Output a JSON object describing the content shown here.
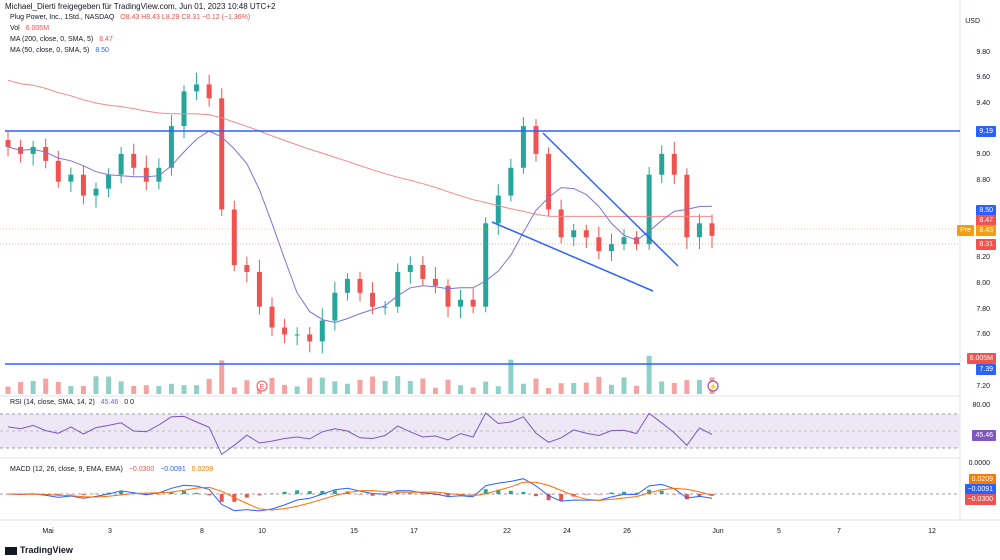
{
  "header": {
    "attribution": "Michael_Dierti freigegeben für TradingView.com, Jun 01, 2023 10:48 UTC+2"
  },
  "legend": {
    "symbol": "Plug Power, Inc., 1Std., NASDAQ",
    "ohlc": "O8.43 H8.43 L8.29 C8.31 −0.12 (−1.36%)",
    "vol_label": "Vol",
    "vol_value": "6.005M",
    "ma200_label": "MA (200, close, 0, SMA, 5)",
    "ma200_value": "8.47",
    "ma50_label": "MA (50, close, 0, SMA, 5)",
    "ma50_value": "8.50",
    "rsi_label": "RSI (14, close, SMA, 14, 2)",
    "rsi_value": "45.46",
    "rsi_extra": "0 0",
    "macd_label": "MACD (12, 26, close, 9, EMA, EMA)",
    "macd_v1": "−0.0300",
    "macd_v2": "−0.0091",
    "macd_v3": "0.0209"
  },
  "axis": {
    "currency": "USD",
    "y_ticks": [
      "9.80",
      "9.60",
      "9.40",
      "9.00",
      "8.80",
      "8.20",
      "8.00",
      "7.80",
      "7.60",
      "7.20"
    ],
    "rsi_ticks": [
      "80.00",
      "0.0000"
    ],
    "x_ticks": [
      "Mai",
      "3",
      "8",
      "10",
      "15",
      "17",
      "22",
      "24",
      "26",
      "Jun",
      "5",
      "7",
      "12"
    ]
  },
  "price_labels": [
    {
      "text": "9.19",
      "color": "#2962ff"
    },
    {
      "text": "8.50",
      "color": "#2962ff"
    },
    {
      "text": "8.47",
      "color": "#ef5350"
    },
    {
      "text": "Pre",
      "color": "#f59d0f"
    },
    {
      "text": "8.43",
      "color": "#f59d0f"
    },
    {
      "text": "8.31",
      "color": "#ef5350"
    },
    {
      "text": "6.005M",
      "color": "#ef5350"
    },
    {
      "text": "7.39",
      "color": "#2962ff"
    },
    {
      "text": "45.46",
      "color": "#7e57c2"
    },
    {
      "text": "0.0209",
      "color": "#f57c00"
    },
    {
      "text": "−0.0091",
      "color": "#2962ff"
    },
    {
      "text": "−0.0300",
      "color": "#ef5350"
    }
  ],
  "footer": {
    "brand": "TradingView"
  },
  "colors": {
    "up": "#26a69a",
    "down": "#ef5350",
    "hline": "#2962ff",
    "ma200": "#ef8080",
    "ma50": "#7e72d8"
  },
  "chart_data": {
    "type": "candlestick",
    "ylim": [
      7.2,
      9.9
    ],
    "close_approx": [
      8.95,
      8.9,
      8.95,
      8.85,
      8.7,
      8.75,
      8.6,
      8.65,
      8.75,
      8.9,
      8.8,
      8.7,
      8.8,
      9.1,
      9.35,
      9.4,
      9.3,
      8.5,
      8.1,
      8.05,
      7.8,
      7.65,
      7.6,
      7.6,
      7.55,
      7.7,
      7.9,
      8.0,
      7.9,
      7.8,
      7.8,
      8.05,
      8.1,
      8.0,
      7.95,
      7.8,
      7.85,
      7.8,
      8.4,
      8.6,
      8.8,
      9.1,
      8.9,
      8.5,
      8.3,
      8.35,
      8.3,
      8.2,
      8.25,
      8.3,
      8.25,
      8.75,
      8.9,
      8.75,
      8.3,
      8.4,
      8.31
    ],
    "horizontal_levels": [
      9.19,
      7.39
    ]
  }
}
